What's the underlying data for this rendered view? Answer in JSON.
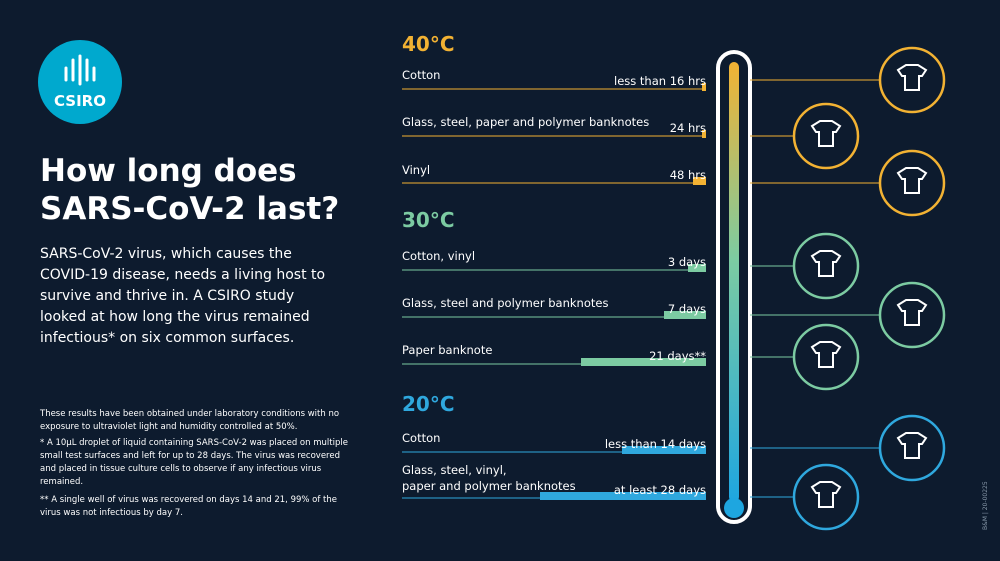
{
  "logo": "CSIRO",
  "title": "How long does SARS-CoV-2 last?",
  "intro": "SARS-CoV-2 virus, which causes the COVID-19 disease, needs a living host to survive and thrive in. A CSIRO study looked at how long the virus remained infectious* on six common surfaces.",
  "notes": [
    "These results have been obtained under laboratory conditions with no exposure to ultraviolet light and humidity controlled at 50%.",
    "* A 10μL droplet of liquid containing SARS-CoV-2 was placed on multiple small test surfaces and left for up to 28 days. The virus was recovered and placed in tissue culture cells to observe if any infectious virus remained.",
    "** A single well of virus was recovered on days 14 and 21, 99% of the virus was not infectious by day 7."
  ],
  "sections": [
    {
      "temperature": "40°C",
      "items": [
        {
          "surface": "Cotton",
          "duration": "less than 16 hrs"
        },
        {
          "surface": "Glass, steel, paper and polymer banknotes",
          "duration": "24 hrs"
        },
        {
          "surface": "Vinyl",
          "duration": "48 hrs"
        }
      ]
    },
    {
      "temperature": "30°C",
      "items": [
        {
          "surface": "Cotton, vinyl",
          "duration": "3 days"
        },
        {
          "surface": "Glass, steel and polymer banknotes",
          "duration": "7 days"
        },
        {
          "surface": "Paper banknote",
          "duration": "21 days**"
        }
      ]
    },
    {
      "temperature": "20°C",
      "items": [
        {
          "surface": "Cotton",
          "duration": "less than 14 days"
        },
        {
          "surface": "Glass, steel, vinyl,\npaper and polymer banknotes",
          "duration": "at least 28 days"
        }
      ]
    }
  ],
  "footer_code": "B&M | 20-00225"
}
